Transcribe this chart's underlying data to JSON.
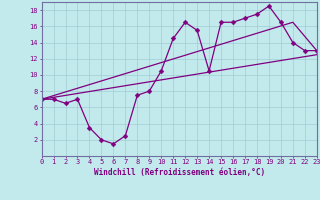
{
  "title": "",
  "xlabel": "Windchill (Refroidissement éolien,°C)",
  "bg_color": "#c2eaed",
  "line_color": "#800080",
  "grid_color": "#9fccd4",
  "spine_color": "#7070a0",
  "xmin": 0,
  "xmax": 23,
  "ymin": 0,
  "ymax": 19,
  "xticks": [
    0,
    1,
    2,
    3,
    4,
    5,
    6,
    7,
    8,
    9,
    10,
    11,
    12,
    13,
    14,
    15,
    16,
    17,
    18,
    19,
    20,
    21,
    22,
    23
  ],
  "yticks": [
    2,
    4,
    6,
    8,
    10,
    12,
    14,
    16,
    18
  ],
  "line1_x": [
    0,
    1,
    2,
    3,
    4,
    5,
    6,
    7,
    8,
    9,
    10,
    11,
    12,
    13,
    14,
    15,
    16,
    17,
    18,
    19,
    20,
    21,
    22,
    23
  ],
  "line1_y": [
    7,
    7,
    6.5,
    7,
    3.5,
    2,
    1.5,
    2.5,
    7.5,
    8,
    10.5,
    14.5,
    16.5,
    15.5,
    10.5,
    16.5,
    16.5,
    17,
    17.5,
    18.5,
    16.5,
    14,
    13,
    13
  ],
  "line2_x": [
    0,
    21,
    23
  ],
  "line2_y": [
    7,
    16.5,
    13
  ],
  "line3_x": [
    0,
    23
  ],
  "line3_y": [
    7,
    12.5
  ],
  "marker_size": 2.5,
  "lw": 0.9,
  "tick_fontsize": 5.0,
  "xlabel_fontsize": 5.5
}
